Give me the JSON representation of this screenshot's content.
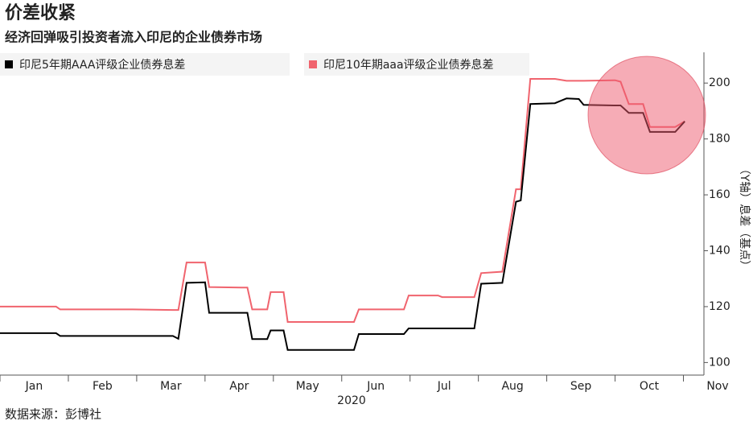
{
  "chart_data": {
    "type": "line",
    "title": "价差收紧",
    "subtitle": "经济回弹吸引投资者流入印尼的企业债券市场",
    "y_label": "（Y轴）息差（基点）",
    "x_label": "2020",
    "source": "数据来源：彭博社",
    "x": [
      1.0,
      1.82,
      1.88,
      2.94,
      3.53,
      3.61,
      3.73,
      4.0,
      4.06,
      4.53,
      4.62,
      4.69,
      4.91,
      4.96,
      5.15,
      5.21,
      6.18,
      6.25,
      6.91,
      6.98,
      7.41,
      7.47,
      7.94,
      8.04,
      8.35,
      8.55,
      8.62,
      8.76,
      9.12,
      9.29,
      9.47,
      9.54,
      10.0,
      10.08,
      10.2,
      10.41,
      10.51,
      10.88,
      11.02
    ],
    "series": [
      {
        "name": "印尼5年期AAA评级企业债券息差",
        "color": "#000000",
        "values": [
          110.5,
          110.5,
          109.5,
          109.5,
          109.5,
          108.5,
          128.5,
          128.7,
          117.8,
          117.8,
          117.8,
          108.4,
          108.4,
          111.5,
          111.5,
          104.5,
          104.5,
          110.2,
          110.2,
          112.2,
          112.2,
          112.2,
          112.2,
          128.2,
          128.5,
          157.5,
          158,
          192.5,
          192.8,
          194.5,
          194.3,
          192.2,
          192,
          192,
          189.3,
          189.3,
          182.5,
          182.5,
          186.3
        ]
      },
      {
        "name": "印尼10年期aaa评级企业债券息差",
        "color": "#f0646e",
        "values": [
          120,
          120,
          119,
          119,
          118.8,
          118.8,
          135.8,
          135.8,
          127,
          126.8,
          126.8,
          119,
          119,
          125.2,
          125.2,
          114.5,
          114.5,
          119,
          119,
          124,
          124,
          123.4,
          123.4,
          132,
          132.5,
          162,
          162,
          201.5,
          201.5,
          200.8,
          200.8,
          200.8,
          201,
          200.5,
          192.5,
          192.5,
          184.3,
          184.3,
          186.3
        ]
      }
    ],
    "xlim": [
      1,
      11.3
    ],
    "xticks": [
      {
        "value": 1,
        "label": "Jan"
      },
      {
        "value": 2,
        "label": "Feb"
      },
      {
        "value": 3,
        "label": "Mar"
      },
      {
        "value": 4,
        "label": "Apr"
      },
      {
        "value": 5,
        "label": "May"
      },
      {
        "value": 6,
        "label": "Jun"
      },
      {
        "value": 7,
        "label": "Jul"
      },
      {
        "value": 8,
        "label": "Aug"
      },
      {
        "value": 9,
        "label": "Sep"
      },
      {
        "value": 10,
        "label": "Oct"
      },
      {
        "value": 11,
        "label": "Nov"
      }
    ],
    "ylim": [
      95.5,
      211
    ],
    "yticks": [
      100,
      120,
      140,
      160,
      180,
      200
    ],
    "grid": false
  }
}
